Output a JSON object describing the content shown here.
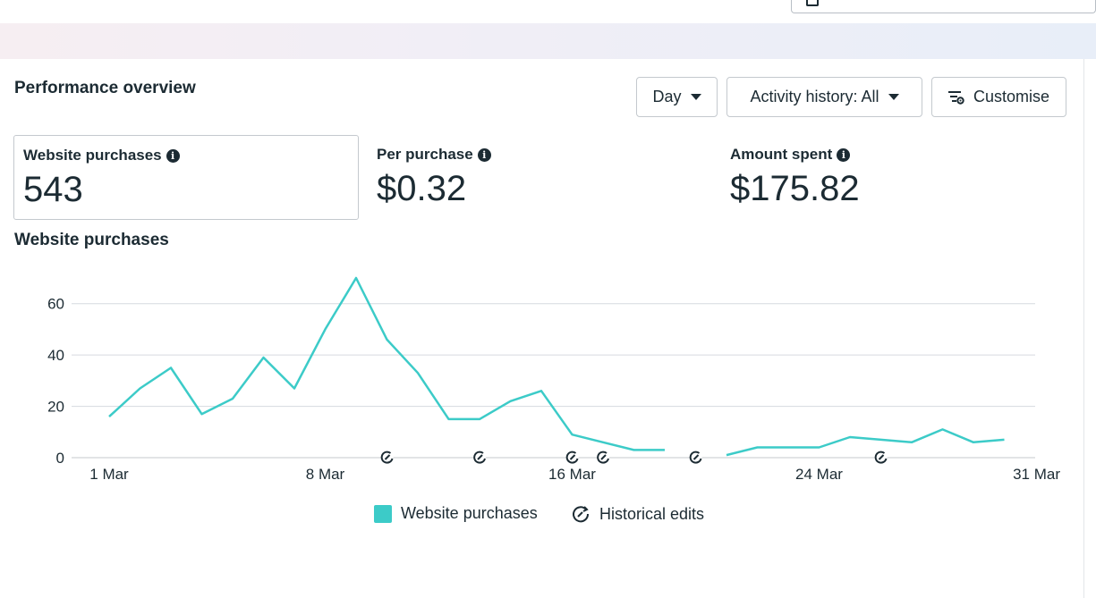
{
  "header": {
    "title": "Performance overview"
  },
  "controls": {
    "day_label": "Day",
    "activity_label": "Activity history: All",
    "customise_label": "Customise"
  },
  "metrics": [
    {
      "label": "Website purchases",
      "value": "543"
    },
    {
      "label": "Per purchase",
      "value": "$0.32"
    },
    {
      "label": "Amount spent",
      "value": "$175.82"
    }
  ],
  "chart_title": "Website purchases",
  "legend": {
    "series_label": "Website purchases",
    "edits_label": "Historical edits"
  },
  "colors": {
    "line": "#3ccbc8",
    "grid": "#d6dadf",
    "text": "#1c2b33"
  },
  "chart_data": {
    "type": "line",
    "title": "Website purchases",
    "ylim": [
      0,
      70
    ],
    "yticks": [
      0,
      20,
      40,
      60
    ],
    "xtick_labels": [
      {
        "day": 1,
        "label": "1 Mar"
      },
      {
        "day": 8,
        "label": "8 Mar"
      },
      {
        "day": 16,
        "label": "16 Mar"
      },
      {
        "day": 24,
        "label": "24 Mar"
      },
      {
        "day": 31,
        "label": "31 Mar"
      }
    ],
    "series": [
      {
        "name": "Website purchases",
        "x": [
          1,
          2,
          3,
          4,
          5,
          6,
          7,
          8,
          9,
          10,
          11,
          12,
          13,
          14,
          15,
          16,
          17,
          18,
          19,
          20,
          21,
          22,
          23,
          24,
          25,
          26,
          27,
          28,
          29,
          30,
          31
        ],
        "values": [
          16,
          27,
          35,
          17,
          23,
          39,
          27,
          50,
          70,
          46,
          33,
          15,
          15,
          22,
          26,
          9,
          6,
          3,
          3,
          null,
          1,
          4,
          4,
          4,
          8,
          7,
          6,
          11,
          6,
          7,
          null
        ]
      }
    ],
    "historical_edit_days": [
      10,
      13,
      16,
      17,
      20,
      26
    ],
    "legend_position": "bottom"
  }
}
